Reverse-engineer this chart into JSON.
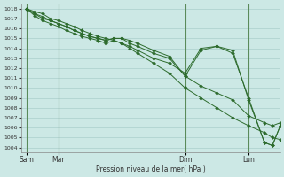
{
  "title": "",
  "xlabel": "Pression niveau de la mer( hPa )",
  "ylabel": "",
  "bg_color": "#cce8e5",
  "grid_color": "#aacfcc",
  "line_color": "#2d6b2d",
  "ylim": [
    1003.5,
    1018.5
  ],
  "yticks": [
    1004,
    1005,
    1006,
    1007,
    1008,
    1009,
    1010,
    1011,
    1012,
    1013,
    1014,
    1015,
    1016,
    1017,
    1018
  ],
  "xtick_labels": [
    "Sam",
    "Mar",
    "Dim",
    "Lun"
  ],
  "xtick_positions": [
    0,
    12,
    60,
    84
  ],
  "xlim": [
    -2,
    96
  ],
  "vline_positions": [
    0,
    12,
    60,
    84
  ],
  "series": [
    {
      "x": [
        0,
        3,
        6,
        9,
        12,
        15,
        18,
        21,
        24,
        27,
        30,
        33,
        36,
        39,
        42,
        48,
        54,
        60,
        66,
        72,
        78,
        84,
        90,
        93,
        96
      ],
      "y": [
        1018.0,
        1017.7,
        1017.5,
        1017.0,
        1016.8,
        1016.5,
        1016.2,
        1015.8,
        1015.5,
        1015.2,
        1015.0,
        1014.8,
        1014.5,
        1014.0,
        1013.5,
        1012.5,
        1011.5,
        1010.0,
        1009.0,
        1008.0,
        1007.0,
        1006.2,
        1005.5,
        1005.0,
        1004.8
      ]
    },
    {
      "x": [
        0,
        3,
        6,
        9,
        12,
        15,
        18,
        21,
        24,
        27,
        30,
        33,
        36,
        39,
        42,
        48,
        54,
        60,
        66,
        72,
        78,
        84,
        90,
        93,
        96
      ],
      "y": [
        1018.0,
        1017.5,
        1017.2,
        1016.8,
        1016.5,
        1016.2,
        1015.8,
        1015.5,
        1015.2,
        1015.0,
        1014.8,
        1015.0,
        1015.0,
        1014.8,
        1014.5,
        1013.8,
        1013.2,
        1011.2,
        1010.2,
        1009.5,
        1008.8,
        1007.2,
        1006.5,
        1006.2,
        1006.5
      ]
    },
    {
      "x": [
        0,
        3,
        6,
        9,
        12,
        15,
        18,
        21,
        24,
        27,
        30,
        33,
        36,
        39,
        42,
        48,
        54,
        60,
        66,
        72,
        78,
        84,
        90,
        93,
        96
      ],
      "y": [
        1018.0,
        1017.5,
        1017.0,
        1016.8,
        1016.5,
        1016.2,
        1015.8,
        1015.5,
        1015.2,
        1015.0,
        1014.8,
        1015.0,
        1015.0,
        1014.5,
        1014.2,
        1013.5,
        1013.0,
        1011.2,
        1013.8,
        1014.2,
        1013.5,
        1009.0,
        1004.5,
        1004.2,
        1006.2
      ]
    },
    {
      "x": [
        0,
        3,
        6,
        9,
        12,
        15,
        18,
        21,
        24,
        27,
        30,
        33,
        36,
        39,
        42,
        48,
        54,
        60,
        66,
        72,
        78,
        84,
        90,
        93,
        96
      ],
      "y": [
        1018.0,
        1017.3,
        1016.8,
        1016.5,
        1016.2,
        1015.8,
        1015.5,
        1015.2,
        1015.0,
        1014.8,
        1014.5,
        1014.8,
        1014.5,
        1014.2,
        1013.8,
        1013.0,
        1012.5,
        1011.5,
        1014.0,
        1014.2,
        1013.8,
        1008.8,
        1004.5,
        1004.2,
        1006.2
      ]
    }
  ],
  "marker": "D",
  "markersize": 2.0,
  "linewidth": 0.7
}
